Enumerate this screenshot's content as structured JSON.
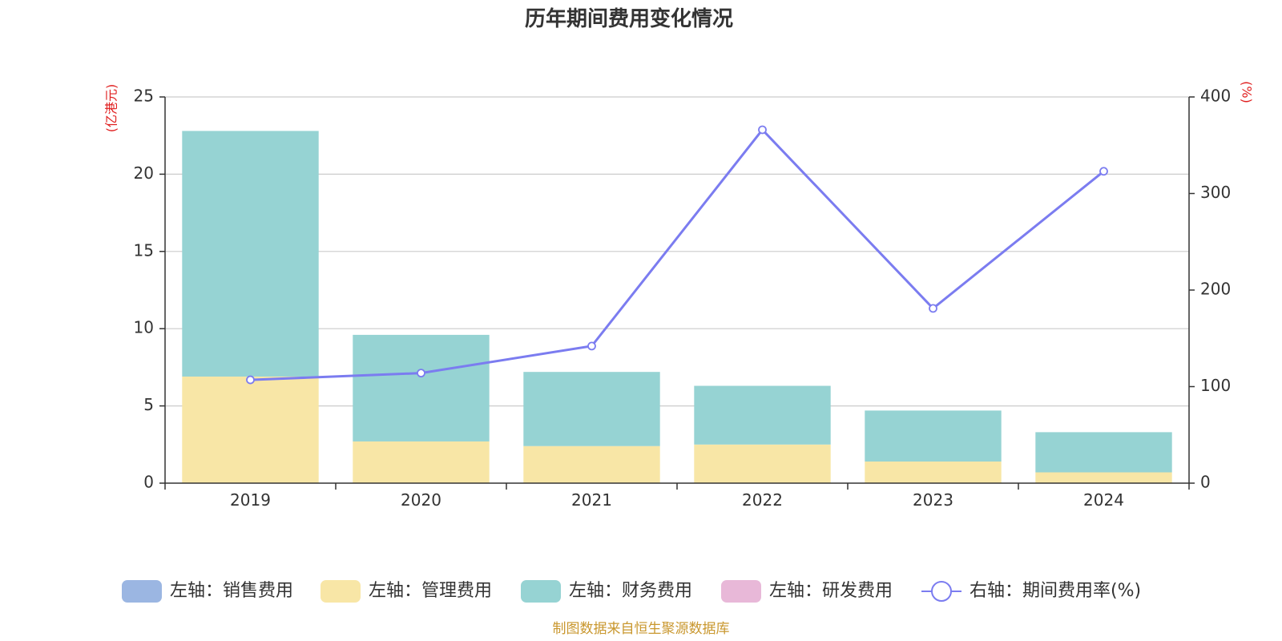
{
  "chart_data": {
    "type": "bar",
    "title": "历年期间费用变化情况",
    "categories": [
      "2019",
      "2020",
      "2021",
      "2022",
      "2023",
      "2024"
    ],
    "left_axis": {
      "unit_label": "(亿港元)",
      "ylim": [
        0,
        25
      ],
      "ticks": [
        "0",
        "5",
        "10",
        "15",
        "20",
        "25"
      ]
    },
    "right_axis": {
      "unit_label": "(%)",
      "ylim": [
        0,
        400
      ],
      "ticks": [
        "0",
        "100",
        "200",
        "300",
        "400"
      ]
    },
    "series": [
      {
        "name": "左轴：销售费用",
        "type": "bar",
        "axis": "left",
        "stack": "cost",
        "color": "#9bb6e2",
        "values": [
          0,
          0,
          0,
          0,
          0,
          0
        ]
      },
      {
        "name": "左轴：管理费用",
        "type": "bar",
        "axis": "left",
        "stack": "cost",
        "color": "#f8e6a6",
        "values": [
          6.9,
          2.7,
          2.4,
          2.5,
          1.4,
          0.7
        ]
      },
      {
        "name": "左轴：财务费用",
        "type": "bar",
        "axis": "left",
        "stack": "cost",
        "color": "#96d3d3",
        "values": [
          15.9,
          6.9,
          4.8,
          3.8,
          3.3,
          2.6
        ]
      },
      {
        "name": "左轴：研发费用",
        "type": "bar",
        "axis": "left",
        "stack": "cost",
        "color": "#e8b8d8",
        "values": [
          0,
          0,
          0,
          0,
          0,
          0
        ]
      },
      {
        "name": "右轴：期间费用率(%)",
        "type": "line",
        "axis": "right",
        "color": "#7b7cf0",
        "values": [
          107,
          114,
          142,
          366,
          181,
          323
        ]
      }
    ],
    "grid": true,
    "legend_position": "bottom",
    "source_note": "制图数据来自恒生聚源数据库"
  }
}
